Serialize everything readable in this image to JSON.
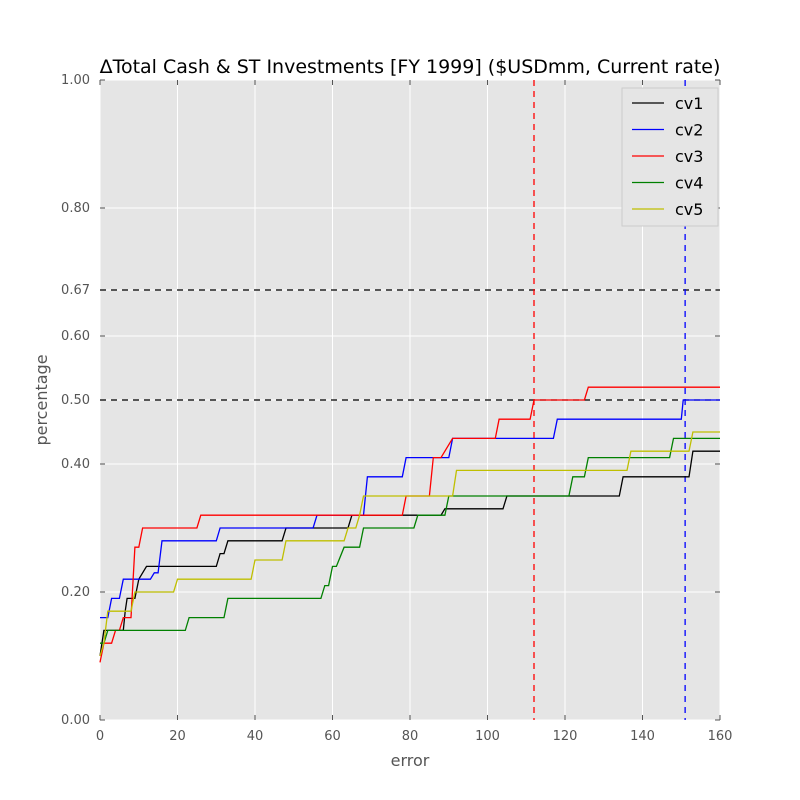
{
  "chart_data": {
    "type": "line",
    "title": "ΔTotal Cash & ST Investments [FY 1999] ($USDmm, Current rate)",
    "xlabel": "error",
    "ylabel": "percentage",
    "xlim": [
      0,
      160
    ],
    "ylim": [
      0,
      1
    ],
    "y_scale": "nonuniform (quantile-spaced ticks)",
    "x_ticks": [
      0,
      20,
      40,
      60,
      80,
      100,
      120,
      140,
      160
    ],
    "x_tick_labels": [
      "0",
      "20",
      "40",
      "60",
      "80",
      "100",
      "120",
      "140",
      "160"
    ],
    "y_ticks": [
      0.0,
      0.2,
      0.4,
      0.5,
      0.6,
      0.67,
      0.8,
      1.0
    ],
    "y_tick_labels": [
      "0.00",
      "0.20",
      "0.40",
      "0.50",
      "0.60",
      "0.67",
      "0.80",
      "1.00"
    ],
    "grid": true,
    "legend_position": "top-right",
    "reference_lines": {
      "horizontal": [
        {
          "y": 0.67,
          "color": "#000000",
          "style": "dashed"
        },
        {
          "y": 0.5,
          "color": "#000000",
          "style": "dashed"
        }
      ],
      "vertical": [
        {
          "x": 112,
          "color": "#ff0000",
          "style": "dashed"
        },
        {
          "x": 151,
          "color": "#0000ff",
          "style": "dashed"
        }
      ]
    },
    "series": [
      {
        "name": "cv1",
        "color": "#000000",
        "x": [
          0,
          1,
          6,
          6.5,
          7,
          9,
          10,
          12,
          30,
          31,
          32,
          33,
          47,
          48,
          64,
          65,
          88,
          89,
          104,
          105,
          134,
          135,
          152,
          153,
          160
        ],
        "y": [
          0.1,
          0.14,
          0.14,
          0.17,
          0.19,
          0.19,
          0.22,
          0.24,
          0.24,
          0.26,
          0.26,
          0.28,
          0.28,
          0.3,
          0.3,
          0.32,
          0.32,
          0.33,
          0.33,
          0.35,
          0.35,
          0.38,
          0.38,
          0.42,
          0.42
        ]
      },
      {
        "name": "cv2",
        "color": "#0000ff",
        "x": [
          0,
          2,
          3,
          5,
          6,
          13,
          14,
          15,
          16,
          30,
          31,
          55,
          56,
          68,
          69,
          78,
          79,
          90,
          91,
          117,
          118,
          150,
          150.5,
          160
        ],
        "y": [
          0.16,
          0.16,
          0.19,
          0.19,
          0.22,
          0.22,
          0.23,
          0.23,
          0.28,
          0.28,
          0.3,
          0.3,
          0.32,
          0.32,
          0.38,
          0.38,
          0.41,
          0.41,
          0.44,
          0.44,
          0.47,
          0.47,
          0.5,
          0.5
        ]
      },
      {
        "name": "cv3",
        "color": "#ff0000",
        "x": [
          0,
          1,
          3,
          4,
          5,
          6,
          8,
          9,
          10,
          11,
          12,
          25,
          26,
          78,
          79,
          85,
          86,
          88,
          91,
          102,
          103,
          111,
          112,
          125,
          126,
          160
        ],
        "y": [
          0.09,
          0.12,
          0.12,
          0.14,
          0.14,
          0.16,
          0.16,
          0.27,
          0.27,
          0.3,
          0.3,
          0.3,
          0.32,
          0.32,
          0.35,
          0.35,
          0.41,
          0.41,
          0.44,
          0.44,
          0.47,
          0.47,
          0.5,
          0.5,
          0.52,
          0.52
        ]
      },
      {
        "name": "cv4",
        "color": "#008000",
        "x": [
          0,
          1,
          2,
          3,
          22,
          23,
          32,
          33,
          57,
          58,
          59,
          60,
          61,
          63,
          64,
          67,
          68,
          81,
          82,
          89,
          90,
          121,
          122,
          125,
          126,
          147,
          148,
          160
        ],
        "y": [
          0.12,
          0.12,
          0.14,
          0.14,
          0.14,
          0.16,
          0.16,
          0.19,
          0.19,
          0.21,
          0.21,
          0.24,
          0.24,
          0.27,
          0.27,
          0.27,
          0.3,
          0.3,
          0.32,
          0.32,
          0.35,
          0.35,
          0.38,
          0.38,
          0.41,
          0.41,
          0.44,
          0.44
        ]
      },
      {
        "name": "cv5",
        "color": "#bfbf00",
        "x": [
          0,
          1,
          2,
          8,
          9,
          19,
          20,
          39,
          40,
          47,
          48,
          63,
          64,
          66,
          67,
          68,
          91,
          92,
          136,
          137,
          145,
          146,
          152,
          153,
          160
        ],
        "y": [
          0.1,
          0.12,
          0.17,
          0.17,
          0.2,
          0.2,
          0.22,
          0.22,
          0.25,
          0.25,
          0.28,
          0.28,
          0.3,
          0.3,
          0.32,
          0.35,
          0.35,
          0.39,
          0.39,
          0.42,
          0.42,
          0.42,
          0.42,
          0.45,
          0.45
        ]
      }
    ]
  }
}
